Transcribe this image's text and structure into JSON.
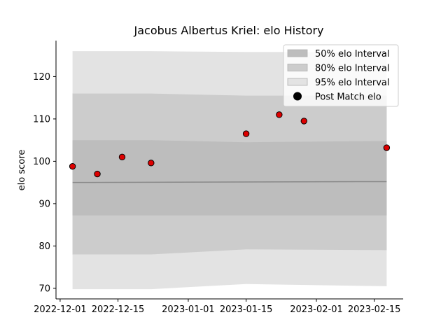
{
  "chart_data": {
    "type": "scatter",
    "title": "Jacobus Albertus Kriel: elo History",
    "xlabel": "",
    "ylabel": "elo score",
    "xlim": [
      "2022-11-30",
      "2023-02-22"
    ],
    "ylim": [
      67.5,
      128.5
    ],
    "x_ticks": [
      "2022-12-01",
      "2022-12-15",
      "2023-01-01",
      "2023-01-15",
      "2023-02-01",
      "2023-02-15"
    ],
    "y_ticks": [
      70,
      80,
      90,
      100,
      110,
      120
    ],
    "grid": false,
    "legend": {
      "placement": "top-right",
      "entries": [
        "50% elo Interval",
        "80% elo Interval",
        "95% elo Interval",
        "Post Match elo"
      ]
    },
    "band_x": [
      "2022-12-04",
      "2022-12-23",
      "2023-01-15",
      "2023-02-18"
    ],
    "bands": [
      {
        "name": "95% elo Interval",
        "color": "#e3e3e3",
        "lower": [
          69.8,
          69.8,
          71.0,
          70.5
        ],
        "upper": [
          126.0,
          126.0,
          125.8,
          125.8
        ]
      },
      {
        "name": "80% elo Interval",
        "color": "#cccccc",
        "lower": [
          78.0,
          78.0,
          79.2,
          79.0
        ],
        "upper": [
          116.0,
          116.0,
          115.5,
          115.5
        ]
      },
      {
        "name": "50% elo Interval",
        "color": "#bdbdbd",
        "lower": [
          87.2,
          87.2,
          87.2,
          87.2
        ],
        "upper": [
          105.0,
          105.0,
          104.5,
          104.8
        ]
      }
    ],
    "mean_line": {
      "x": [
        "2022-12-04",
        "2023-02-18"
      ],
      "y": [
        95.0,
        95.2
      ],
      "color": "#888888"
    },
    "series": [
      {
        "name": "Post Match elo",
        "color": "#dd0000",
        "points": [
          {
            "x": "2022-12-04",
            "y": 98.8
          },
          {
            "x": "2022-12-10",
            "y": 97.0
          },
          {
            "x": "2022-12-16",
            "y": 101.0
          },
          {
            "x": "2022-12-23",
            "y": 99.6
          },
          {
            "x": "2023-01-15",
            "y": 106.5
          },
          {
            "x": "2023-01-23",
            "y": 111.0
          },
          {
            "x": "2023-01-29",
            "y": 109.5
          },
          {
            "x": "2023-02-18",
            "y": 103.2
          }
        ]
      }
    ]
  }
}
